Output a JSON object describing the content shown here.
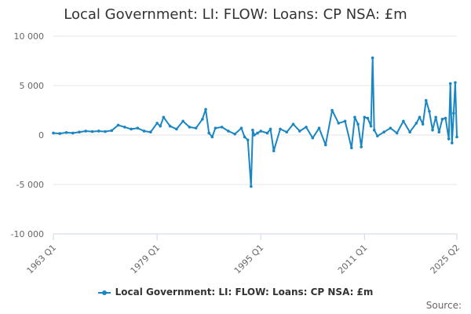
{
  "chart_data": {
    "type": "line",
    "title": "Local Government: LI: FLOW: Loans: CP NSA: £m",
    "xlabel": "",
    "ylabel": "",
    "ylim": [
      -10000,
      10000
    ],
    "y_ticks": [
      10000,
      5000,
      0,
      -5000,
      -10000
    ],
    "y_tick_labels": [
      "10 000",
      "5 000",
      "0",
      "-5 000",
      "-10 000"
    ],
    "x_ticks": [
      1963.0,
      1979.0,
      1995.0,
      2011.0,
      2025.25
    ],
    "x_tick_labels": [
      "1963 Q1",
      "1979 Q1",
      "1995 Q1",
      "2011 Q1",
      "2025 Q2"
    ],
    "grid": true,
    "legend_position": "bottom",
    "color": "#1a86c2",
    "series": [
      {
        "name": "Local Government: LI: FLOW: Loans: CP NSA: £m",
        "x": [
          1963.0,
          1964.0,
          1965.0,
          1966.0,
          1967.0,
          1968.0,
          1969.0,
          1970.0,
          1971.0,
          1972.0,
          1973.0,
          1974.0,
          1975.0,
          1976.0,
          1977.0,
          1978.0,
          1979.0,
          1979.5,
          1980.0,
          1981.0,
          1982.0,
          1983.0,
          1984.0,
          1985.0,
          1986.0,
          1986.5,
          1987.0,
          1987.5,
          1988.0,
          1989.0,
          1990.0,
          1991.0,
          1992.0,
          1992.5,
          1993.0,
          1993.5,
          1993.75,
          1994.0,
          1994.5,
          1995.0,
          1996.0,
          1996.5,
          1997.0,
          1998.0,
          1999.0,
          2000.0,
          2001.0,
          2002.0,
          2003.0,
          2004.0,
          2005.0,
          2006.0,
          2007.0,
          2008.0,
          2009.0,
          2009.5,
          2010.0,
          2010.5,
          2011.0,
          2011.5,
          2012.0,
          2012.25,
          2012.5,
          2013.0,
          2014.0,
          2015.0,
          2016.0,
          2017.0,
          2018.0,
          2019.0,
          2019.5,
          2020.0,
          2020.5,
          2021.0,
          2021.5,
          2022.0,
          2022.5,
          2023.0,
          2023.5,
          2024.0,
          2024.25,
          2024.5,
          2024.75,
          2025.0,
          2025.25
        ],
        "values": [
          200,
          150,
          250,
          200,
          300,
          400,
          350,
          400,
          350,
          450,
          1000,
          800,
          600,
          700,
          400,
          300,
          1200,
          900,
          1800,
          900,
          600,
          1400,
          800,
          700,
          1600,
          2600,
          200,
          -200,
          700,
          800,
          400,
          100,
          700,
          -200,
          -500,
          -5200,
          500,
          0,
          200,
          400,
          200,
          600,
          -1600,
          600,
          300,
          1100,
          400,
          800,
          -300,
          700,
          -1000,
          2500,
          1200,
          1400,
          -1300,
          1800,
          1100,
          -1200,
          1800,
          1700,
          900,
          7800,
          500,
          -100,
          300,
          700,
          200,
          1400,
          300,
          1200,
          1800,
          1100,
          3500,
          2400,
          500,
          1800,
          300,
          1600,
          1700,
          -400,
          5200,
          -800,
          2200,
          5300,
          -200
        ]
      }
    ]
  },
  "legend": {
    "label": "Local Government: LI: FLOW: Loans: CP NSA: £m"
  },
  "source": {
    "label": "Source:"
  }
}
